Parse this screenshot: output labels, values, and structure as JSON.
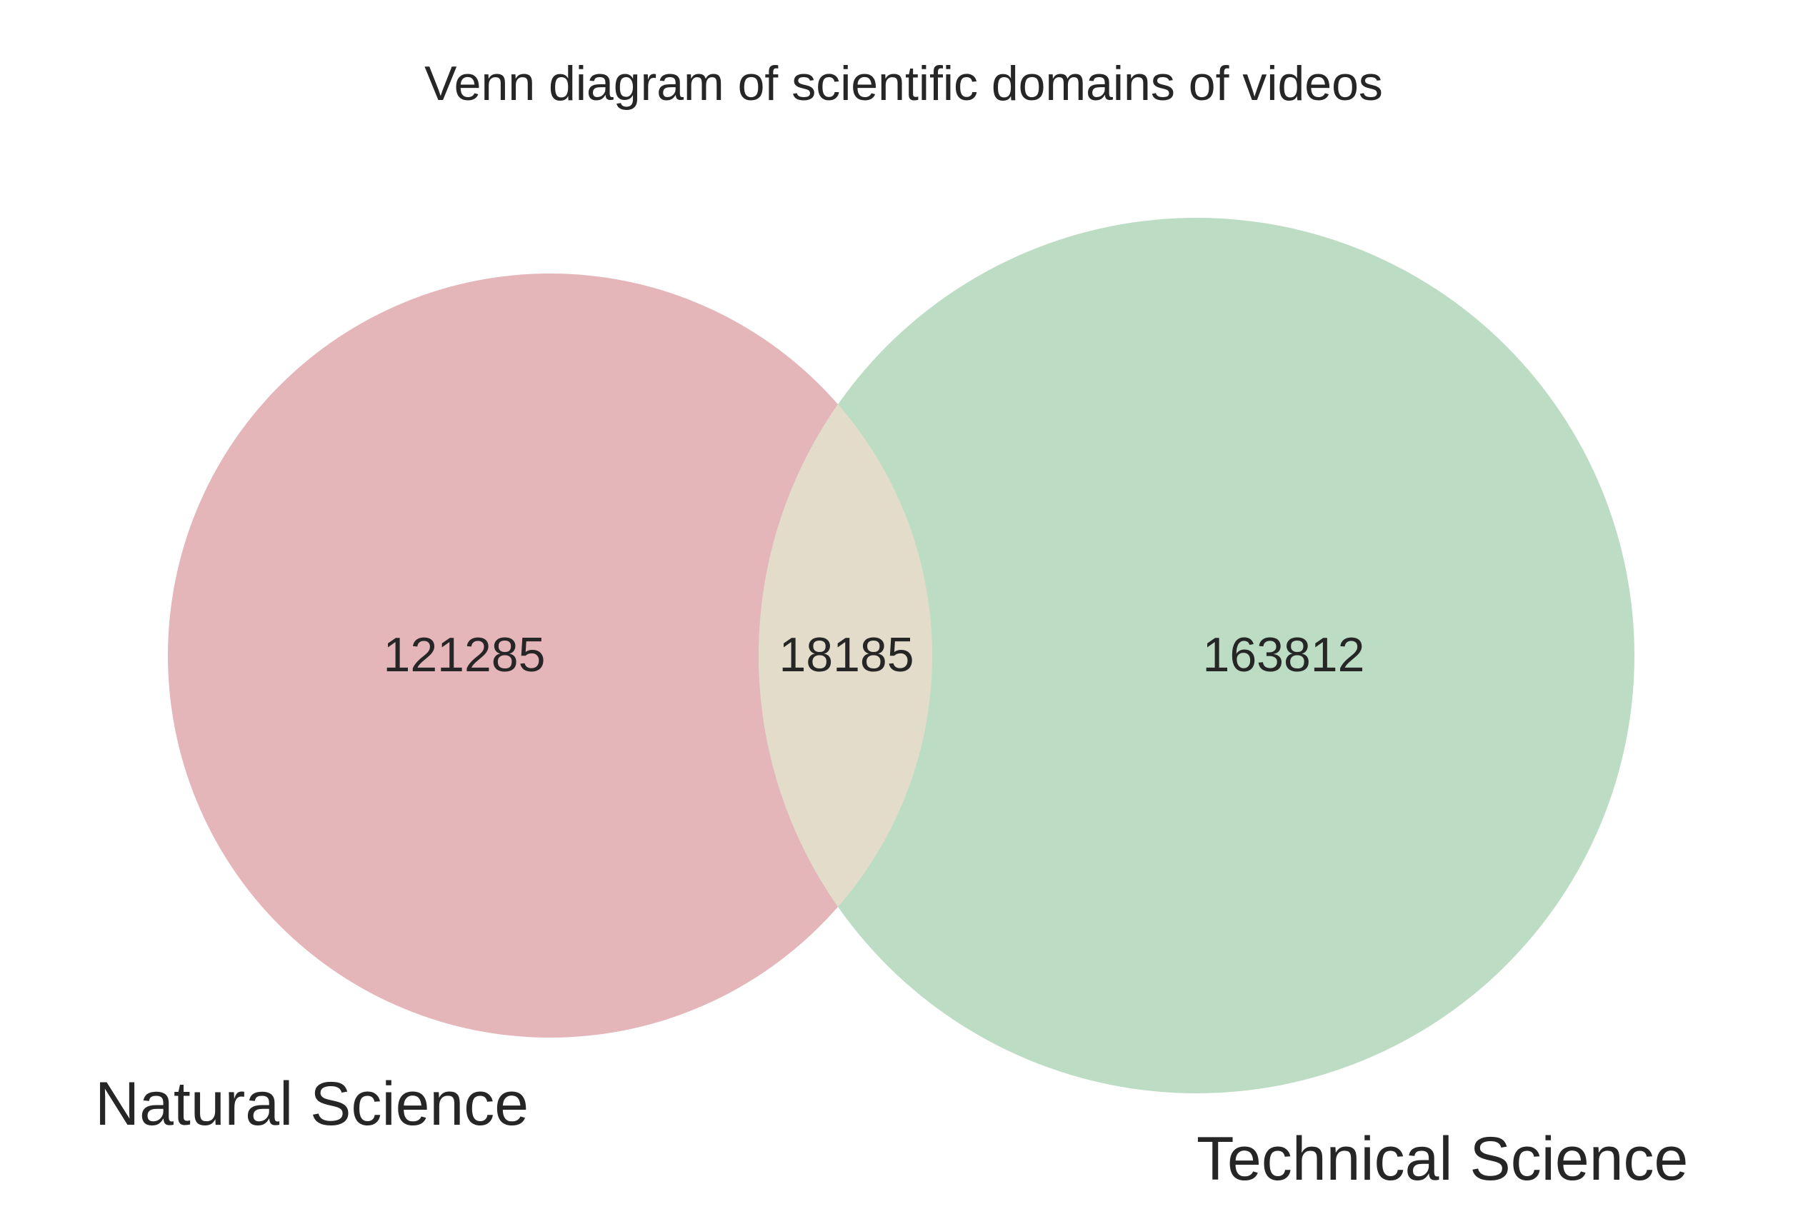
{
  "chart_data": {
    "type": "venn",
    "title": "Venn diagram of scientific domains of videos",
    "sets": [
      {
        "name": "Natural Science",
        "only_count": 121285,
        "color": "#e5b6b9"
      },
      {
        "name": "Technical Science",
        "only_count": 163812,
        "color": "#bddcc4"
      }
    ],
    "intersection": {
      "count": 18185,
      "color": "#e4dccb"
    },
    "region_labels": {
      "natural_only": "121285",
      "both": "18185",
      "technical_only": "163812"
    }
  }
}
